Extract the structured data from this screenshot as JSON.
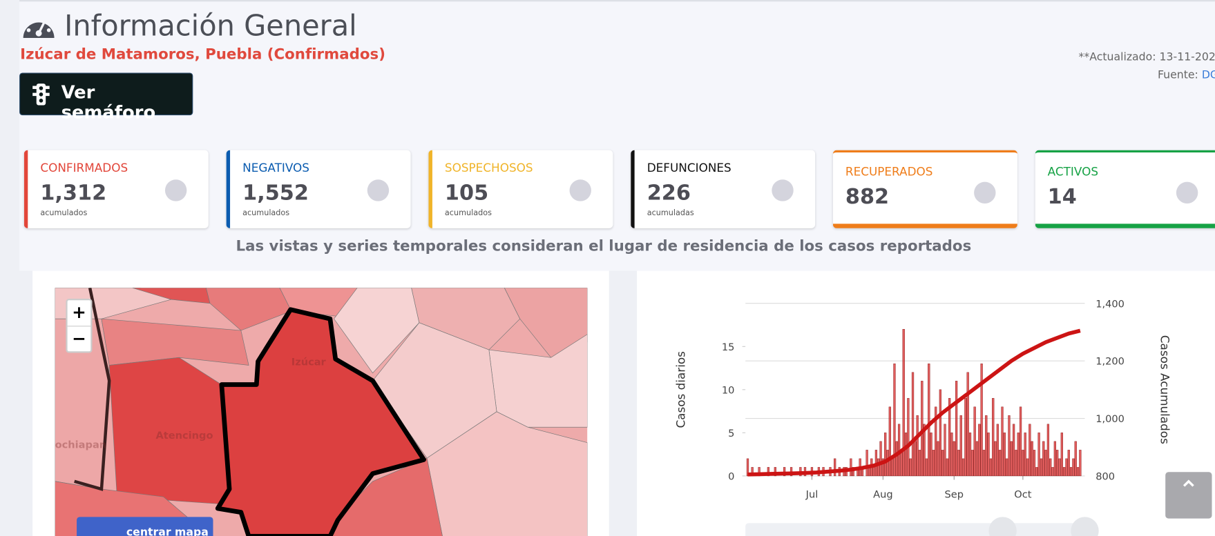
{
  "header": {
    "title": "Información General",
    "subtitle": "Izúcar de Matamoros, Puebla (Confirmados)",
    "button": "Ver semáforo",
    "updated": "**Actualizado: 13-11-202",
    "source_label": "Fuente:",
    "source_link": "DG"
  },
  "cards": [
    {
      "label": "CONFIRMADOS",
      "value": "1,312",
      "note": "acumulados",
      "color": "#e2463a"
    },
    {
      "label": "NEGATIVOS",
      "value": "1,552",
      "note": "acumulados",
      "color": "#0b5cb0"
    },
    {
      "label": "SOSPECHOSOS",
      "value": "105",
      "note": "acumulados",
      "color": "#f0b429"
    },
    {
      "label": "DEFUNCIONES",
      "value": "226",
      "note": "acumuladas",
      "color": "#111111"
    },
    {
      "label": "RECUPERADOS",
      "value": "882",
      "color": "#ef7d1a"
    },
    {
      "label": "ACTIVOS",
      "value": "14",
      "color": "#16a245"
    }
  ],
  "note": "Las vistas y series temporales consideran el lugar de residencia de los casos reportados",
  "map": {
    "zoom_in": "+",
    "zoom_out": "−",
    "labels": [
      "Izúcar",
      "Atencingo",
      "ochiapan"
    ],
    "button": "centrar mapa"
  },
  "chart_data": {
    "type": "bar",
    "y_label": "Casos diarios",
    "y2_label": "Casos Acumulados",
    "xlim": [
      -1,
      147
    ],
    "xticks": [
      {
        "value": 28,
        "label": "Jul"
      },
      {
        "value": 59,
        "label": "Aug"
      },
      {
        "value": 90,
        "label": "Sep"
      },
      {
        "value": 120,
        "label": "Oct"
      }
    ],
    "ylim": [
      0,
      20
    ],
    "yticks": [
      0,
      5,
      10,
      15
    ],
    "y2lim": [
      800,
      1400
    ],
    "y2ticks": [
      800,
      {
        "value": 1000,
        "label": "1,000"
      },
      {
        "value": 1200,
        "label": "1,200"
      },
      {
        "value": 1400,
        "label": "1,400"
      }
    ],
    "grid": true,
    "series": [
      {
        "type": "bar",
        "color": "#d83535",
        "x": [
          0,
          1,
          2,
          3,
          4,
          5,
          6,
          7,
          8,
          9,
          10,
          11,
          12,
          13,
          14,
          15,
          16,
          17,
          18,
          19,
          20,
          21,
          22,
          23,
          24,
          25,
          26,
          27,
          28,
          29,
          30,
          31,
          32,
          33,
          34,
          35,
          36,
          37,
          38,
          39,
          40,
          41,
          42,
          43,
          44,
          45,
          46,
          47,
          48,
          49,
          50,
          51,
          52,
          53,
          54,
          55,
          56,
          57,
          58,
          59,
          60,
          61,
          62,
          63,
          64,
          65,
          66,
          67,
          68,
          69,
          70,
          71,
          72,
          73,
          74,
          75,
          76,
          77,
          78,
          79,
          80,
          81,
          82,
          83,
          84,
          85,
          86,
          87,
          88,
          89,
          90,
          91,
          92,
          93,
          94,
          95,
          96,
          97,
          98,
          99,
          100,
          101,
          102,
          103,
          104,
          105,
          106,
          107,
          108,
          109,
          110,
          111,
          112,
          113,
          114,
          115,
          116,
          117,
          118,
          119,
          120,
          121,
          122,
          123,
          124,
          125,
          126,
          127,
          128,
          129,
          130,
          131,
          132,
          133,
          134,
          135,
          136,
          137,
          138,
          139,
          140,
          141,
          142,
          143,
          144,
          145
        ],
        "values": [
          2,
          0,
          1,
          0,
          0,
          1,
          0,
          0,
          0,
          1,
          0,
          0,
          1,
          0,
          0,
          0,
          1,
          0,
          0,
          1,
          0,
          0,
          0,
          1,
          0,
          1,
          0,
          0,
          1,
          0,
          0,
          1,
          0,
          1,
          0,
          0,
          1,
          0,
          2,
          0,
          1,
          0,
          1,
          1,
          0,
          2,
          1,
          0,
          1,
          2,
          1,
          0,
          3,
          1,
          2,
          1,
          3,
          2,
          4,
          2,
          5,
          3,
          8,
          2,
          13,
          4,
          6,
          3,
          17,
          5,
          9,
          2,
          12,
          4,
          7,
          3,
          11,
          6,
          2,
          13,
          5,
          3,
          8,
          4,
          10,
          3,
          6,
          2,
          9,
          5,
          4,
          11,
          3,
          7,
          2,
          9,
          12,
          5,
          3,
          8,
          4,
          6,
          13,
          3,
          7,
          5,
          2,
          9,
          4,
          6,
          3,
          8,
          5,
          2,
          7,
          4,
          6,
          3,
          5,
          8,
          3,
          5,
          2,
          6,
          4,
          3,
          1,
          5,
          2,
          4,
          3,
          6,
          2,
          1,
          4,
          3,
          2,
          5,
          1,
          2,
          3,
          1,
          2,
          4,
          1,
          3
        ]
      },
      {
        "type": "line",
        "axis": "y2",
        "color": "#cc1414",
        "x": [
          0,
          5,
          10,
          15,
          20,
          25,
          30,
          35,
          40,
          45,
          50,
          55,
          60,
          65,
          70,
          75,
          80,
          85,
          90,
          95,
          100,
          105,
          110,
          115,
          120,
          125,
          130,
          135,
          140,
          145
        ],
        "values": [
          805,
          806,
          807,
          808,
          809,
          810,
          812,
          815,
          818,
          822,
          828,
          836,
          850,
          875,
          905,
          945,
          985,
          1020,
          1050,
          1080,
          1110,
          1140,
          1170,
          1200,
          1225,
          1245,
          1265,
          1280,
          1295,
          1305
        ]
      }
    ]
  }
}
